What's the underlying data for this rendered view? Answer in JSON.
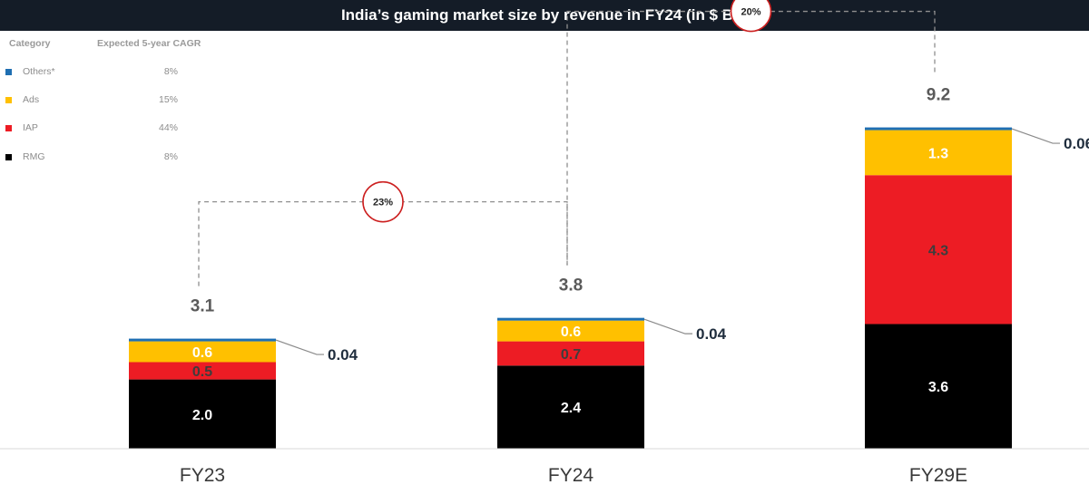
{
  "title": "India’s gaming market size by revenue in FY24 (in $ Bn)",
  "legend": {
    "header_category": "Category",
    "header_cagr": "Expected 5-year CAGR",
    "items": [
      {
        "label": "Others*",
        "cagr": "8%",
        "color": "#1f6fb2"
      },
      {
        "label": "Ads",
        "cagr": "15%",
        "color": "#ffc000"
      },
      {
        "label": "IAP",
        "cagr": "44%",
        "color": "#ed1c24"
      },
      {
        "label": "RMG",
        "cagr": "8%",
        "color": "#000000"
      }
    ]
  },
  "chart_data": {
    "type": "bar",
    "stacked": true,
    "title": "India’s gaming market size by revenue in FY24 (in $ Bn)",
    "categories": [
      "FY23",
      "FY24",
      "FY29E"
    ],
    "series": [
      {
        "name": "RMG",
        "color": "#000000",
        "values": [
          2.0,
          2.4,
          3.6
        ],
        "labels": [
          "2.0",
          "2.4",
          "3.6"
        ],
        "label_color": "#ffffff"
      },
      {
        "name": "IAP",
        "color": "#ed1c24",
        "values": [
          0.5,
          0.7,
          4.3
        ],
        "labels": [
          "0.5",
          "0.7",
          "4.3"
        ],
        "label_color": "#3d3d3d"
      },
      {
        "name": "Ads",
        "color": "#ffc000",
        "values": [
          0.6,
          0.6,
          1.3
        ],
        "labels": [
          "0.6",
          "0.6",
          "1.3"
        ],
        "label_color": "#ffffff"
      },
      {
        "name": "Others*",
        "color": "#1f6fb2",
        "values": [
          0.04,
          0.04,
          0.06
        ],
        "labels": [
          "0.04",
          "0.04",
          "0.06"
        ],
        "label_color": "#1f2d3d"
      }
    ],
    "totals": [
      "3.1",
      "3.8",
      "9.2"
    ],
    "growth_annotations": [
      {
        "from": "FY23",
        "to": "FY24",
        "label": "23%"
      },
      {
        "from": "FY24",
        "to": "FY29E",
        "label": "20%"
      }
    ],
    "legend_position": "top-left"
  }
}
